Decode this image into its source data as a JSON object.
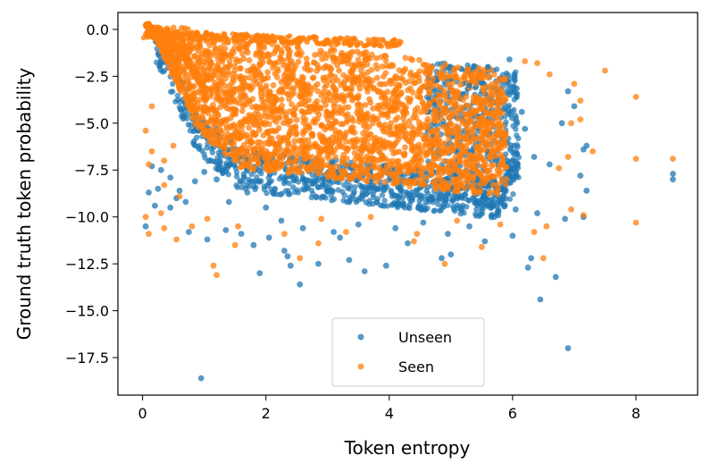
{
  "chart_data": {
    "type": "scatter",
    "title": "",
    "xlabel": "Token entropy",
    "ylabel": "Ground truth token probability",
    "xlim": [
      -0.4,
      9.0
    ],
    "ylim": [
      -19.5,
      0.9
    ],
    "xticks": [
      0,
      2,
      4,
      6,
      8
    ],
    "yticks": [
      0.0,
      -2.5,
      -5.0,
      -7.5,
      -10.0,
      -12.5,
      -15.0,
      -17.5
    ],
    "xtick_labels": [
      "0",
      "2",
      "4",
      "6",
      "8"
    ],
    "ytick_labels": [
      "0.0",
      "−2.5",
      "−5.0",
      "−7.5",
      "−10.0",
      "−12.5",
      "−15.0",
      "−17.5"
    ],
    "grid": false,
    "legend_position": "bottom-center",
    "series": [
      {
        "name": "Unseen",
        "color": "#1f77b4",
        "points": [
          [
            0.95,
            -18.6
          ],
          [
            6.9,
            -17.0
          ],
          [
            6.45,
            -14.4
          ],
          [
            2.55,
            -13.6
          ],
          [
            1.9,
            -13.0
          ],
          [
            2.4,
            -12.6
          ],
          [
            2.85,
            -12.5
          ],
          [
            3.6,
            -12.9
          ],
          [
            3.95,
            -12.6
          ],
          [
            6.25,
            -12.7
          ],
          [
            6.7,
            -13.2
          ],
          [
            6.3,
            -12.2
          ],
          [
            2.3,
            -11.8
          ],
          [
            2.35,
            -12.1
          ],
          [
            1.8,
            -11.5
          ],
          [
            1.05,
            -11.2
          ],
          [
            1.6,
            -10.9
          ],
          [
            0.75,
            -10.8
          ],
          [
            1.35,
            -10.7
          ],
          [
            0.05,
            -10.5
          ],
          [
            0.45,
            -9.5
          ],
          [
            0.55,
            -9.0
          ],
          [
            0.7,
            -9.2
          ],
          [
            0.25,
            -8.5
          ],
          [
            0.1,
            -8.7
          ],
          [
            0.85,
            -8.1
          ],
          [
            0.6,
            -8.6
          ],
          [
            0.15,
            -7.3
          ],
          [
            0.3,
            -7.5
          ],
          [
            0.45,
            -7.9
          ],
          [
            1.0,
            -7.6
          ],
          [
            1.2,
            -8.0
          ],
          [
            1.4,
            -9.2
          ],
          [
            1.7,
            -8.7
          ],
          [
            2.0,
            -9.5
          ],
          [
            2.25,
            -10.2
          ],
          [
            2.6,
            -10.6
          ],
          [
            3.1,
            -10.8
          ],
          [
            3.5,
            -10.4
          ],
          [
            4.1,
            -10.6
          ],
          [
            4.55,
            -10.3
          ],
          [
            4.95,
            -10.9
          ],
          [
            5.3,
            -10.5
          ],
          [
            5.7,
            -10.0
          ],
          [
            6.05,
            -9.6
          ],
          [
            6.4,
            -9.8
          ],
          [
            6.85,
            -10.1
          ],
          [
            7.15,
            -10.0
          ],
          [
            7.2,
            -8.6
          ],
          [
            7.1,
            -7.8
          ],
          [
            7.15,
            -6.4
          ],
          [
            7.2,
            -6.2
          ],
          [
            7.0,
            -4.1
          ],
          [
            6.9,
            -3.3
          ],
          [
            6.8,
            -5.0
          ],
          [
            6.6,
            -7.2
          ],
          [
            6.35,
            -6.8
          ],
          [
            6.2,
            -5.3
          ],
          [
            6.15,
            -4.4
          ],
          [
            5.95,
            -1.6
          ],
          [
            5.6,
            -2.0
          ],
          [
            5.3,
            -3.0
          ],
          [
            8.6,
            -7.7
          ],
          [
            8.6,
            -8.0
          ],
          [
            4.85,
            -12.2
          ],
          [
            4.3,
            -11.4
          ],
          [
            3.2,
            -11.1
          ],
          [
            2.05,
            -11.1
          ],
          [
            5.55,
            -11.3
          ],
          [
            6.0,
            -11.0
          ],
          [
            5.0,
            -12.0
          ],
          [
            3.35,
            -12.3
          ],
          [
            0.2,
            -9.4
          ]
        ]
      },
      {
        "name": "Seen",
        "color": "#ff7f0e",
        "points": [
          [
            1.15,
            -12.6
          ],
          [
            1.2,
            -13.1
          ],
          [
            2.85,
            -11.4
          ],
          [
            4.9,
            -12.5
          ],
          [
            5.5,
            -11.6
          ],
          [
            6.5,
            -12.2
          ],
          [
            8.0,
            -3.6
          ],
          [
            7.5,
            -2.2
          ],
          [
            8.0,
            -6.9
          ],
          [
            8.6,
            -6.9
          ],
          [
            8.0,
            -10.3
          ],
          [
            7.15,
            -9.9
          ],
          [
            6.2,
            -1.7
          ],
          [
            6.4,
            -1.8
          ],
          [
            6.6,
            -2.4
          ],
          [
            7.1,
            -3.8
          ],
          [
            7.1,
            -4.8
          ],
          [
            6.9,
            -6.8
          ],
          [
            6.75,
            -7.4
          ],
          [
            0.05,
            -10.0
          ],
          [
            0.1,
            -10.9
          ],
          [
            0.35,
            -10.6
          ],
          [
            0.55,
            -11.2
          ],
          [
            0.8,
            -10.5
          ],
          [
            1.05,
            -10.1
          ],
          [
            1.55,
            -10.5
          ],
          [
            2.3,
            -10.9
          ],
          [
            2.9,
            -10.1
          ],
          [
            3.3,
            -10.8
          ],
          [
            3.7,
            -10.0
          ],
          [
            4.45,
            -10.9
          ],
          [
            5.1,
            -10.2
          ],
          [
            5.8,
            -10.4
          ],
          [
            6.35,
            -10.8
          ],
          [
            0.35,
            -8.3
          ],
          [
            0.6,
            -8.9
          ],
          [
            0.1,
            -7.2
          ],
          [
            0.15,
            -6.5
          ],
          [
            0.5,
            -6.2
          ],
          [
            0.35,
            -7.0
          ],
          [
            0.05,
            -5.4
          ],
          [
            0.15,
            -4.1
          ],
          [
            1.5,
            -11.5
          ],
          [
            2.55,
            -12.2
          ],
          [
            4.4,
            -11.3
          ],
          [
            0.3,
            -9.8
          ],
          [
            6.55,
            -10.5
          ],
          [
            6.95,
            -9.6
          ],
          [
            7.3,
            -6.5
          ],
          [
            6.95,
            -5.0
          ],
          [
            7.0,
            -2.9
          ]
        ]
      }
    ]
  }
}
